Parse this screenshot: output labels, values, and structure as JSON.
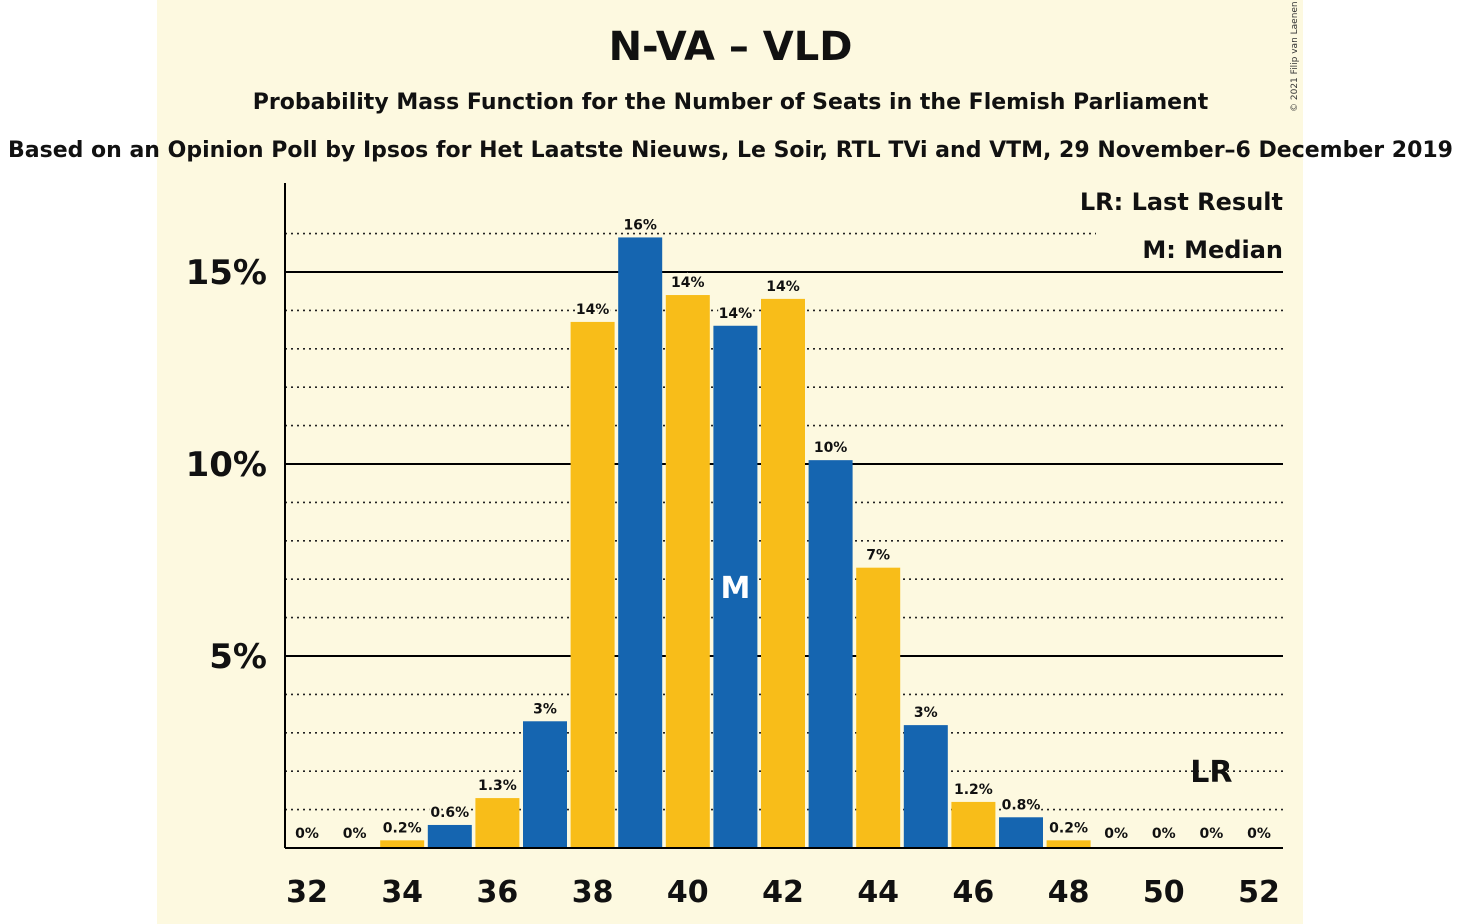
{
  "colors": {
    "background": "#fdf9e0",
    "bar_blue": "#1565b0",
    "bar_yellow": "#f8bd19",
    "text": "#111111"
  },
  "header": {
    "title": "N-VA – VLD",
    "subtitle": "Probability Mass Function for the Number of Seats in the Flemish Parliament",
    "source": "Based on an Opinion Poll by Ipsos for Het Laatste Nieuws, Le Soir, RTL TVi and VTM, 29 November–6 December 2019",
    "copyright": "© 2021 Filip van Laenen"
  },
  "chart_data": {
    "type": "bar",
    "title": "N-VA – VLD",
    "subtitle": "Probability Mass Function for the Number of Seats in the Flemish Parliament",
    "x": [
      32,
      33,
      34,
      35,
      36,
      37,
      38,
      39,
      40,
      41,
      42,
      43,
      44,
      45,
      46,
      47,
      48,
      49,
      50,
      51,
      52
    ],
    "values": [
      0,
      0,
      0.2,
      0.6,
      1.3,
      3.3,
      13.7,
      15.9,
      14.4,
      13.6,
      14.3,
      10.1,
      7.3,
      3.2,
      1.2,
      0.8,
      0.2,
      0,
      0,
      0,
      0
    ],
    "data_labels": [
      "0%",
      "0%",
      "0.2%",
      "0.6%",
      "1.3%",
      "3%",
      "14%",
      "16%",
      "14%",
      "14%",
      "14%",
      "10%",
      "7%",
      "3%",
      "1.2%",
      "0.8%",
      "0.2%",
      "0%",
      "0%",
      "0%",
      "0%"
    ],
    "x_tick_labels": [
      "32",
      "34",
      "36",
      "38",
      "40",
      "42",
      "44",
      "46",
      "48",
      "50",
      "52"
    ],
    "y_tick_values": [
      5,
      10,
      15
    ],
    "y_tick_labels": [
      "5%",
      "10%",
      "15%"
    ],
    "ylim": [
      0,
      17
    ],
    "minor_grid_step": 1,
    "legend": {
      "position": "top-right",
      "entries": [
        "LR: Last Result",
        "M: Median"
      ]
    },
    "median_seat": 41,
    "median_marker": "M",
    "last_result_seat": 51,
    "last_result_marker": "LR"
  }
}
